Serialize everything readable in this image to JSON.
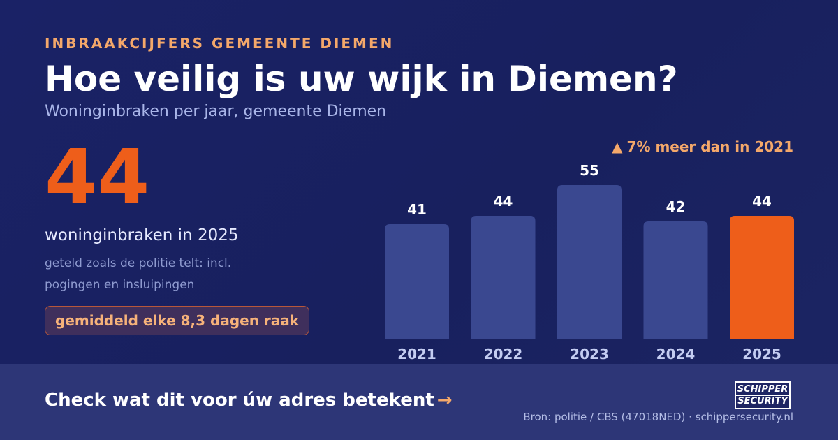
{
  "header": {
    "eyebrow": "INBRAAKCIJFERS GEMEENTE DIEMEN",
    "title": "Hoe veilig is uw wijk in Diemen?",
    "subtitle": "Woninginbraken per jaar, gemeente Diemen"
  },
  "highlight": {
    "number": "44",
    "label": "woninginbraken in 2025",
    "note": "geteld zoals de politie telt: incl. pogingen en insluipingen",
    "badge": "gemiddeld elke 8,3 dagen raak"
  },
  "change": {
    "arrow": "▲",
    "text": "7% meer dan in 2021"
  },
  "colors": {
    "bar": "#3a4890",
    "bar_highlight": "#ee5e1a",
    "value_label": "#ffffff",
    "tick_label": "#c4cdf2",
    "accent": "#f4a86a"
  },
  "chart_data": {
    "type": "bar",
    "categories": [
      "2021",
      "2022",
      "2023",
      "2024",
      "2025"
    ],
    "values": [
      41,
      44,
      55,
      42,
      44
    ],
    "highlight_index": 4,
    "title": "",
    "xlabel": "",
    "ylabel": "",
    "ylim": [
      0,
      55
    ]
  },
  "footer": {
    "cta": "Check wat dit voor úw adres betekent",
    "cta_arrow": "→",
    "source": "Bron: politie / CBS (47018NED) · schippersecurity.nl",
    "logo_line1": "SCHIPPER",
    "logo_line2": "SECURITY"
  }
}
